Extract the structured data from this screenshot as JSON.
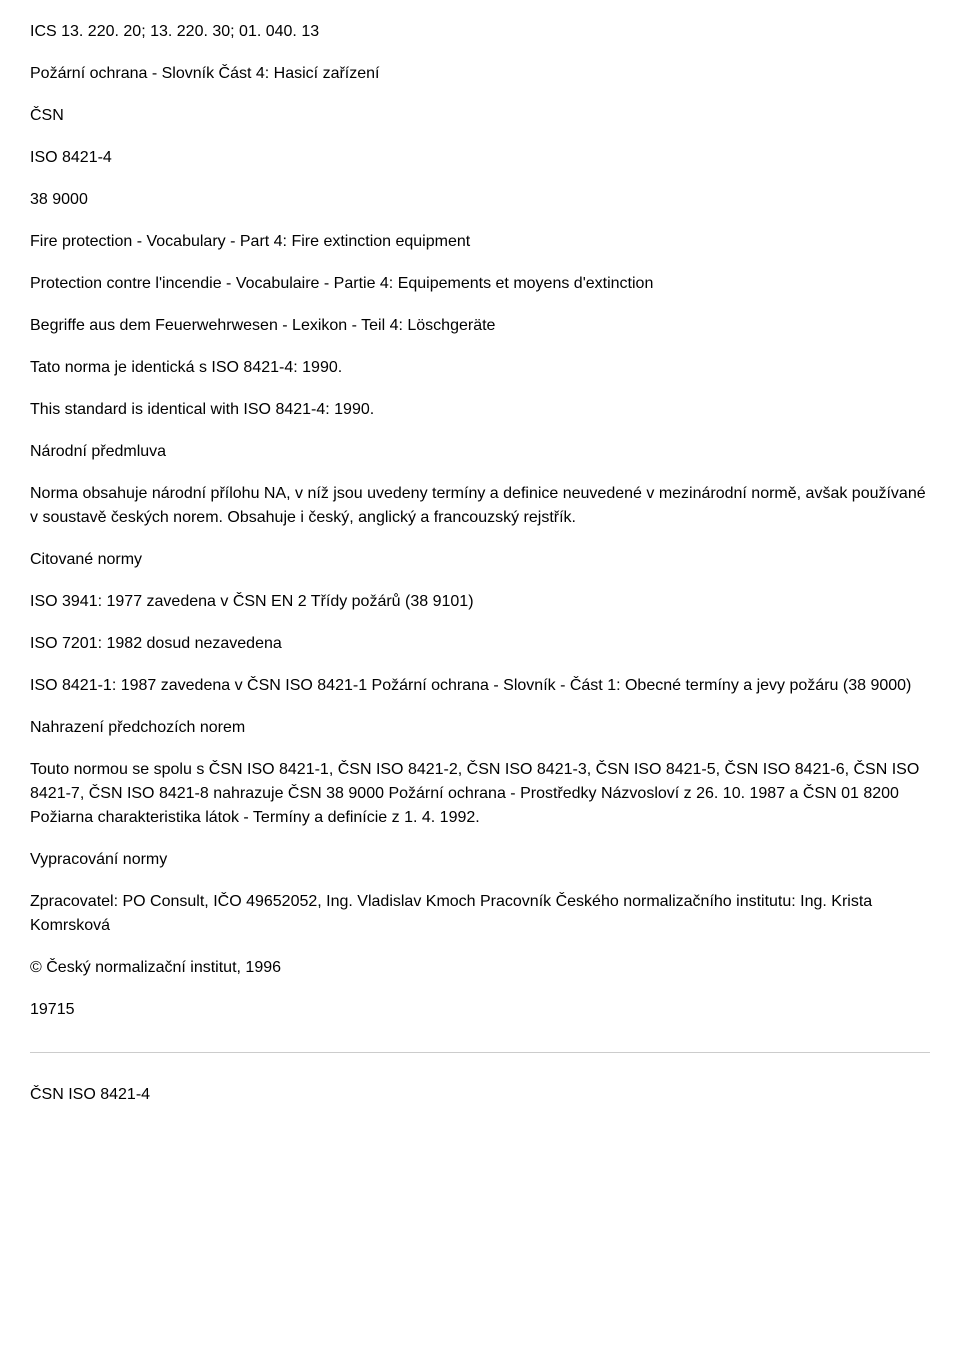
{
  "ics": "ICS 13. 220. 20; 13. 220. 30; 01. 040. 13",
  "title_cs": "Požární ochrana - Slovník Část 4: Hasicí zařízení",
  "csn_label": "ČSN",
  "iso_label": "ISO 8421-4",
  "code": "38 9000",
  "title_en": "Fire protection - Vocabulary - Part 4: Fire extinction equipment",
  "title_fr": "Protection contre l'incendie - Vocabulaire - Partie 4: Equipements et moyens d'extinction",
  "title_de": "Begriffe aus dem Feuerwehrwesen - Lexikon - Teil 4: Löschgeräte",
  "identical_cs": "Tato norma je identická s ISO 8421-4: 1990.",
  "identical_en": "This standard is identical with ISO 8421-4: 1990.",
  "sec_narodni": "Národní předmluva",
  "narodni_text": "Norma obsahuje národní přílohu NA, v níž jsou uvedeny termíny a definice neuvedené v mezinárodní normě, avšak používané v soustavě českých norem. Obsahuje i český, anglický a francouzský rejstřík.",
  "sec_citovane": "Citované normy",
  "cit1": "ISO 3941: 1977 zavedena v ČSN EN 2 Třídy požárů (38 9101)",
  "cit2": "ISO 7201: 1982 dosud nezavedena",
  "cit3": "ISO 8421-1: 1987 zavedena v ČSN ISO 8421-1 Požární ochrana - Slovník - Část 1: Obecné termíny a jevy požáru (38 9000)",
  "sec_nahrazeni": "Nahrazení předchozích norem",
  "nahrazeni_text": "Touto normou se spolu s ČSN ISO 8421-1, ČSN ISO 8421-2, ČSN ISO 8421-3, ČSN ISO 8421-5, ČSN ISO 8421-6, ČSN ISO 8421-7, ČSN ISO 8421-8 nahrazuje ČSN 38 9000 Požární ochrana - Prostředky Názvosloví z 26. 10. 1987 a ČSN 01 8200 Požiarna charakteristika látok - Termíny a definície z 1. 4. 1992.",
  "sec_vypracovani": "Vypracování normy",
  "zpracovatel": "Zpracovatel: PO Consult, IČO 49652052, Ing. Vladislav Kmoch Pracovník Českého normalizačního institutu: Ing. Krista Komrsková",
  "copyright": "© Český normalizační institut, 1996",
  "number": "19715",
  "footer": "ČSN ISO 8421-4"
}
